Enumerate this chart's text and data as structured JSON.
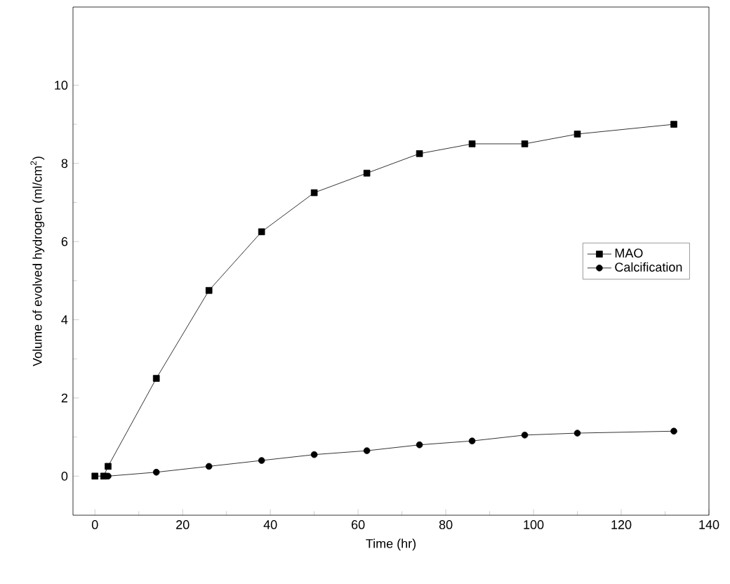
{
  "chart_data": {
    "type": "line",
    "xlabel": "Time (hr)",
    "ylabel": "Volume of evolved hydrogen (ml/cm$^{2}$)",
    "xlim": [
      -5,
      140
    ],
    "ylim": [
      -1,
      12
    ],
    "xticks": [
      0,
      20,
      40,
      60,
      80,
      100,
      120,
      140
    ],
    "yticks": [
      0,
      2,
      4,
      6,
      8,
      10
    ],
    "legend": "right",
    "grid": false,
    "series": [
      {
        "name": "MAO",
        "color": "#000000",
        "marker": "square",
        "x": [
          0,
          2,
          3,
          14,
          26,
          38,
          50,
          62,
          74,
          86,
          98,
          110,
          132
        ],
        "values": [
          0,
          0,
          0.25,
          2.5,
          4.75,
          6.25,
          7.25,
          7.75,
          8.25,
          8.5,
          8.5,
          8.75,
          9
        ]
      },
      {
        "name": "Calcification",
        "color": "#000000",
        "marker": "circle",
        "x": [
          3,
          14,
          26,
          38,
          50,
          62,
          74,
          86,
          98,
          110,
          132
        ],
        "values": [
          0,
          0.1,
          0.25,
          0.4,
          0.55,
          0.65,
          0.8,
          0.9,
          1.05,
          1.1,
          1.15
        ]
      }
    ]
  }
}
